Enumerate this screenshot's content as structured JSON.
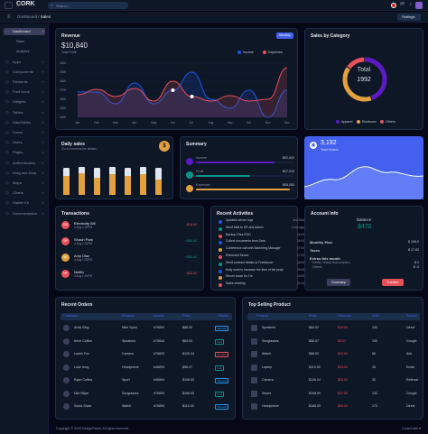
{
  "app": {
    "name": "CORK",
    "search_placeholder": "Search...",
    "settings_label": "Settings"
  },
  "breadcrumb": {
    "root": "Dashboard",
    "sep": " / ",
    "current": "Sales"
  },
  "sidebar": {
    "items": [
      {
        "label": "Dashboard",
        "icon": "home-icon",
        "active": true
      },
      {
        "label": "Sales",
        "icon": "",
        "sub": true
      },
      {
        "label": "Analytics",
        "icon": "",
        "sub": true
      },
      {
        "label": "Apps",
        "icon": "cpu-icon"
      },
      {
        "label": "Components",
        "icon": "box-icon"
      },
      {
        "label": "Elements",
        "icon": "zap-icon"
      },
      {
        "label": "Font Icons",
        "icon": "target-icon"
      },
      {
        "label": "Widgets",
        "icon": "airplay-icon"
      },
      {
        "label": "Tables",
        "icon": "layout-icon"
      },
      {
        "label": "DataTables",
        "icon": "layers-icon"
      },
      {
        "label": "Forms",
        "icon": "clipboard-icon"
      },
      {
        "label": "Users",
        "icon": "users-icon"
      },
      {
        "label": "Pages",
        "icon": "file-icon"
      },
      {
        "label": "Authentication",
        "icon": "lock-icon"
      },
      {
        "label": "Drag and Drop",
        "icon": "move-icon"
      },
      {
        "label": "Maps",
        "icon": "map-icon"
      },
      {
        "label": "Charts",
        "icon": "pie-icon"
      },
      {
        "label": "Starter Kit",
        "icon": "terminal-icon"
      },
      {
        "label": "Documentation",
        "icon": "book-icon"
      }
    ]
  },
  "revenue": {
    "title": "Revenue",
    "amount": "$10,840",
    "sub": "Total Profit",
    "period": "Monthly",
    "legend": [
      "Income",
      "Expenses"
    ]
  },
  "chart_data": {
    "type": "area",
    "x": [
      "Jan",
      "Feb",
      "Mar",
      "Apr",
      "May",
      "Jun",
      "Jul",
      "Aug",
      "Sep",
      "Oct",
      "Nov",
      "Dec"
    ],
    "series": [
      {
        "name": "Income",
        "values": [
          16.8,
          16.8,
          15.5,
          17.8,
          15.5,
          17,
          19,
          16,
          15,
          17,
          14,
          17
        ]
      },
      {
        "name": "Expenses",
        "values": [
          16.5,
          17.1,
          16.3,
          17.2,
          15.8,
          18,
          16.3,
          15.8,
          16.4,
          15.8,
          16,
          19.5
        ]
      }
    ],
    "yticks": [
      "200K",
      "190K",
      "180K",
      "170K",
      "160K",
      "150K",
      "140K"
    ],
    "colors": {
      "Income": "#1b55e2",
      "Expenses": "#e7515a"
    }
  },
  "category": {
    "title": "Sales by Category",
    "total_label": "Total",
    "total": "1992",
    "legend": [
      "Apparel",
      "Electronic",
      "Others"
    ],
    "values": [
      0.45,
      0.4,
      0.15
    ],
    "colors": [
      "#5c1ac3",
      "#e2a03f",
      "#e7515a"
    ]
  },
  "daily": {
    "title": "Daily sales",
    "sub": "Go to columns for details.",
    "coin": "$",
    "bars": [
      0.82,
      0.85,
      0.84,
      0.86,
      0.83,
      0.85,
      0.82
    ],
    "fills": [
      0.72,
      0.8,
      0.62,
      0.74,
      0.7,
      0.76,
      0.58
    ]
  },
  "summary": {
    "title": "Summary",
    "rows": [
      {
        "label": "Income",
        "value": "$92,600",
        "fill": 0.8,
        "color": "#5c1ac3"
      },
      {
        "label": "Profit",
        "value": "$37,515",
        "fill": 0.55,
        "color": "#009688"
      },
      {
        "label": "Expenses",
        "value": "$55,085",
        "fill": 0.95,
        "color": "#e2a03f"
      }
    ]
  },
  "orders_card": {
    "value": "3,192",
    "label": "Total Orders"
  },
  "transactions": {
    "title": "Transactions",
    "rows": [
      {
        "name": "Electricity Bill",
        "date": "4 Aug 1:00PM",
        "amount": "-$16.44",
        "initials": "EB",
        "color": "#e7515a"
      },
      {
        "name": "Shaun Park",
        "date": "4 Aug 1:00PM",
        "amount": "+$66.44",
        "initials": "SP",
        "color": "#e7515a"
      },
      {
        "name": "Amy Diaz",
        "date": "4 Aug 1:00PM",
        "amount": "+$66.44",
        "initials": "AD",
        "color": "#e2a03f"
      },
      {
        "name": "Netflix",
        "date": "4 Aug 1:00PM",
        "amount": "-$32.00",
        "initials": "NF",
        "color": "#e7515a"
      }
    ]
  },
  "activities": {
    "title": "Recent Activities",
    "rows": [
      {
        "text": "Updated server logs",
        "time": "Just Now",
        "color": "#1b55e2"
      },
      {
        "text": "Send Mail to HR and Admin",
        "time": "2 min ago",
        "color": "#009688"
      },
      {
        "text": "Backup Files EOD",
        "time": "14:00",
        "color": "#e7515a"
      },
      {
        "text": "Collect documents from Sara",
        "time": "16:00",
        "color": "#1b55e2"
      },
      {
        "text": "Conference call with Marketing Manager",
        "time": "17:00",
        "color": "#e2a03f"
      },
      {
        "text": "Rebooted Server",
        "time": "17:00",
        "color": "#e7515a"
      },
      {
        "text": "Send contract details to Freelancer",
        "time": "18:00",
        "color": "#009688"
      },
      {
        "text": "Kelly want to increase the time of the project",
        "time": "19:00",
        "color": "#1b55e2"
      },
      {
        "text": "Server down for 1hr",
        "time": "19:00",
        "color": "#e2a03f"
      },
      {
        "text": "Sales meeting",
        "time": "21:00",
        "color": "#e7515a"
      }
    ]
  },
  "account": {
    "title": "Account Info",
    "balance_label": "Balance",
    "balance": "$470",
    "rows": [
      {
        "label": "Monthly Plan",
        "value": "$ 199.0"
      },
      {
        "label": "Taxes",
        "value": "$ 17.82"
      }
    ],
    "extras_title": "Extras this month",
    "extras": [
      {
        "label": "Netflix Yearly Subscription",
        "value": "$ 0"
      },
      {
        "label": "Others",
        "value": "$ -0"
      }
    ],
    "summary_btn": "Summary",
    "transfer_btn": "Transfer"
  },
  "recent_orders": {
    "title": "Recent Orders",
    "headers": [
      "Customer",
      "Product",
      "Invoice",
      "Price",
      "Status"
    ],
    "rows": [
      {
        "customer": "Andy King",
        "product": "Nike Sport",
        "invoice": "#76894",
        "price": "$88.00",
        "status": "Shipped"
      },
      {
        "customer": "Irene Collins",
        "product": "Speakers",
        "invoice": "#75844",
        "price": "$84.00",
        "status": "Paid"
      },
      {
        "customer": "Laurie Fox",
        "product": "Camera",
        "invoice": "#76800",
        "price": "$126.04",
        "status": "Pending"
      },
      {
        "customer": "Luke Ivory",
        "product": "Headphone",
        "invoice": "#46894",
        "price": "$56.07",
        "status": "Paid"
      },
      {
        "customer": "Ryan Collins",
        "product": "Sport",
        "invoice": "#46894",
        "price": "$108.00",
        "status": "Shipped"
      },
      {
        "customer": "Nia Hillyer",
        "product": "Sunglasses",
        "invoice": "#76894",
        "price": "$168.09",
        "status": "Paid"
      },
      {
        "customer": "Sonia Shaw",
        "product": "Watch",
        "invoice": "#76894",
        "price": "$110.00",
        "status": "Shipped"
      }
    ]
  },
  "top_products": {
    "title": "Top Selling Product",
    "headers": [
      "Product",
      "Price",
      "Discount",
      "Sold",
      "Source"
    ],
    "rows": [
      {
        "product": "Speakers",
        "price": "$84.00",
        "discount": "$10.00",
        "sold": "240",
        "source": "Direct"
      },
      {
        "product": "Sunglasses",
        "price": "$56.07",
        "discount": "$5.07",
        "sold": "190",
        "source": "Google"
      },
      {
        "product": "Watch",
        "price": "$88.00",
        "discount": "$20.00",
        "sold": "66",
        "source": "Ads"
      },
      {
        "product": "Laptop",
        "price": "$110.00",
        "discount": "$33.00",
        "sold": "35",
        "source": "Email"
      },
      {
        "product": "Camera",
        "price": "$126.04",
        "discount": "$26.04",
        "sold": "30",
        "source": "Referral"
      },
      {
        "product": "Shoes",
        "price": "$108.09",
        "discount": "$47.09",
        "sold": "130",
        "source": "Google"
      },
      {
        "product": "Headphone",
        "price": "$168.09",
        "discount": "$60.09",
        "sold": "170",
        "source": "Direct"
      }
    ]
  },
  "footer": {
    "left": "Copyright © 2020 DesignReset, All rights reserved.",
    "right": "Coded with ♥"
  }
}
